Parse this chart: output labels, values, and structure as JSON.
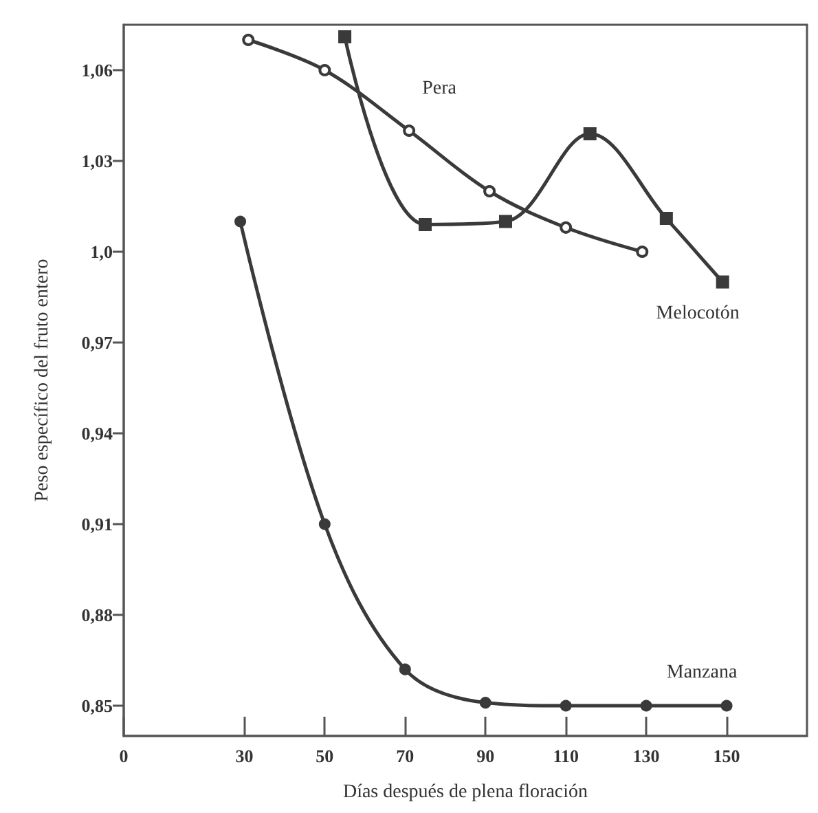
{
  "chart_data": {
    "type": "line",
    "xlabel": "Días después de plena floración",
    "ylabel": "Peso específico del fruto entero",
    "xlim": [
      0,
      170
    ],
    "xticks": [
      0,
      30,
      50,
      70,
      90,
      110,
      130,
      150
    ],
    "ylim": [
      0.84,
      1.075
    ],
    "yticks": [
      {
        "value": 0.85,
        "label": "0,85"
      },
      {
        "value": 0.88,
        "label": "0,88"
      },
      {
        "value": 0.91,
        "label": "0,91"
      },
      {
        "value": 0.94,
        "label": "0,94"
      },
      {
        "value": 0.97,
        "label": "0,97"
      },
      {
        "value": 1.0,
        "label": "1,0"
      },
      {
        "value": 1.03,
        "label": "1,03"
      },
      {
        "value": 1.06,
        "label": "1,06"
      }
    ],
    "grid": false,
    "legend": false,
    "series": [
      {
        "name": "Pera",
        "color": "#3a3a3a",
        "marker": "circle",
        "x": [
          31,
          50,
          71,
          91,
          110,
          129
        ],
        "values": [
          1.07,
          1.06,
          1.04,
          1.02,
          1.008,
          1.0
        ]
      },
      {
        "name": "Melocotón",
        "color": "#3a3a3a",
        "marker": "square",
        "x": [
          55,
          75,
          95,
          116,
          135,
          149
        ],
        "values": [
          1.071,
          1.009,
          1.01,
          1.039,
          1.011,
          0.99
        ]
      },
      {
        "name": "Manzana",
        "color": "#3a3a3a",
        "marker": "circle",
        "x": [
          29,
          50,
          70,
          90,
          110,
          130,
          150
        ],
        "values": [
          1.01,
          0.91,
          0.862,
          0.851,
          0.85,
          0.85,
          0.85
        ]
      }
    ]
  }
}
